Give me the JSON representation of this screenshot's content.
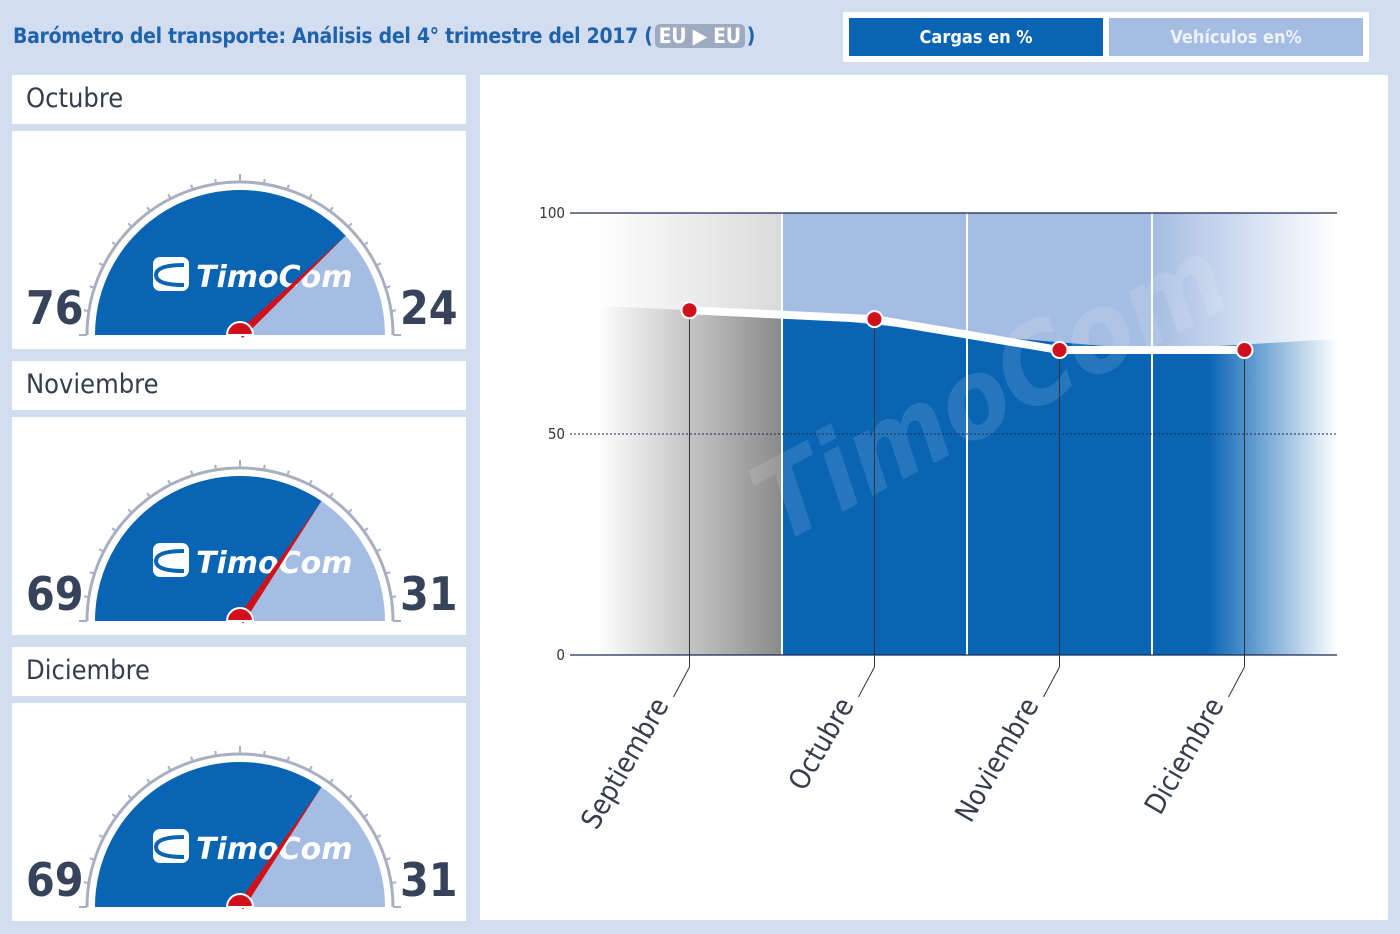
{
  "header": {
    "title": "Barómetro del transporte: Análisis del 4° trimestre del  2017",
    "route_open": "(",
    "route_from": "EU",
    "route_arrow": "▶",
    "route_to": "EU",
    "route_close": ")"
  },
  "tabs": [
    {
      "label": "Cargas en %",
      "active": true
    },
    {
      "label": "Vehículos en%",
      "active": false
    }
  ],
  "months": [
    {
      "name": "Octubre",
      "left": 76,
      "right": 24
    },
    {
      "name": "Noviembre",
      "left": 69,
      "right": 31
    },
    {
      "name": "Diciembre",
      "left": 69,
      "right": 31
    }
  ],
  "gauge_logo": "TimoCom",
  "colors": {
    "dark_blue": "#0964b4",
    "light_blue": "#a5bde3",
    "needle": "#d0101a",
    "point": "#d0101a"
  },
  "chart_data": {
    "type": "area",
    "categories": [
      "Septiembre",
      "Octubre",
      "Noviembre",
      "Diciembre"
    ],
    "values": [
      78,
      76,
      69,
      69
    ],
    "yticks": [
      0,
      50,
      100
    ],
    "ylim": [
      0,
      100
    ],
    "watermark": "TimoCom"
  }
}
